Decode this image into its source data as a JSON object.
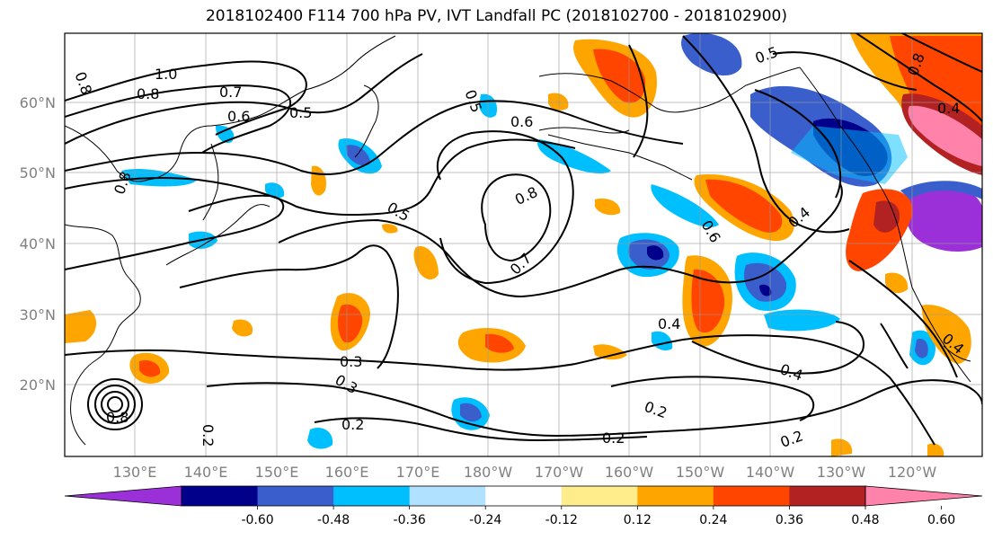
{
  "title": "2018102400 F114 700 hPa PV, IVT Landfall PC (2018102700 - 2018102900)",
  "latitude_labels": [
    "60°N",
    "50°N",
    "40°N",
    "30°N",
    "20°N"
  ],
  "longitude_labels": [
    "130°E",
    "140°E",
    "150°E",
    "160°E",
    "170°E",
    "180°W",
    "170°W",
    "160°W",
    "150°W",
    "140°W",
    "130°W",
    "120°W"
  ],
  "contour_labels": [
    "1.0",
    "0.8",
    "0.7",
    "0.6",
    "0.5",
    "0.8",
    "0.8",
    "0.5",
    "0.6",
    "0.8",
    "0.7",
    "0.5",
    "0.6",
    "0.4",
    "0.4",
    "0.3",
    "0.3",
    "0.2",
    "0.2",
    "0.2",
    "0.4",
    "0.2",
    "0.4",
    "0.5",
    "0.8",
    "0.4",
    "0.8",
    "0.2"
  ],
  "colorbar": {
    "tick_labels": [
      "-0.60",
      "-0.48",
      "-0.36",
      "-0.24",
      "-0.12",
      "0.12",
      "0.24",
      "0.36",
      "0.48",
      "0.60"
    ],
    "colors": [
      "#9b30d9",
      "#00008b",
      "#3a5fcd",
      "#00bfff",
      "#b0e2ff",
      "#ffffff",
      "#ffec8b",
      "#ffa500",
      "#ff4500",
      "#b22222",
      "#ff82ab"
    ]
  }
}
